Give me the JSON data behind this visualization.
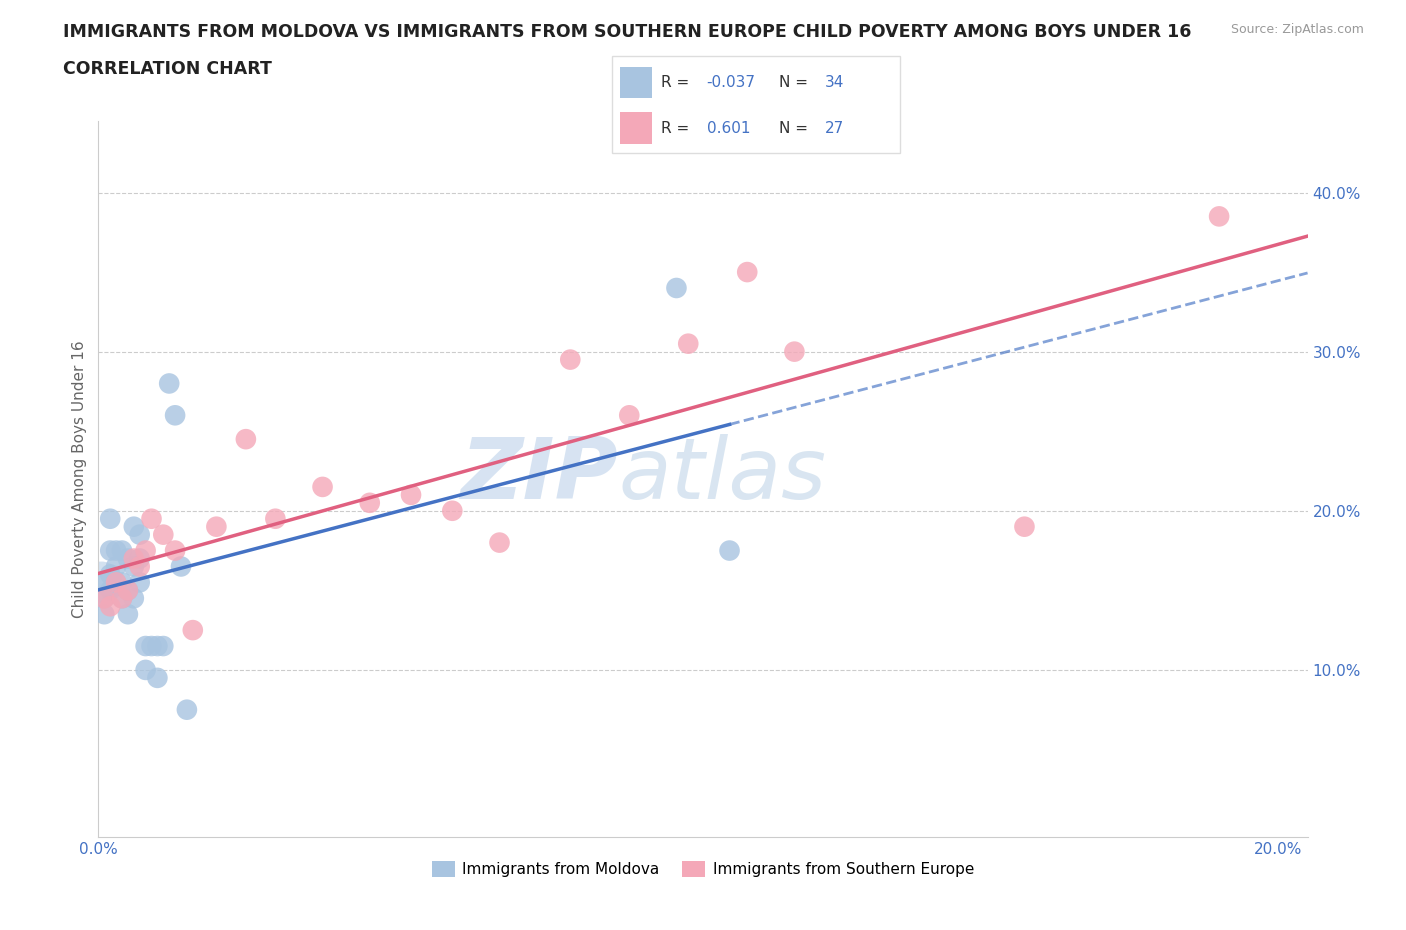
{
  "title_line1": "IMMIGRANTS FROM MOLDOVA VS IMMIGRANTS FROM SOUTHERN EUROPE CHILD POVERTY AMONG BOYS UNDER 16",
  "title_line2": "CORRELATION CHART",
  "source_text": "Source: ZipAtlas.com",
  "ylabel": "Child Poverty Among Boys Under 16",
  "R1": -0.037,
  "N1": 34,
  "R2": 0.601,
  "N2": 27,
  "color1": "#a8c4e0",
  "color2": "#f4a8b8",
  "trendline1_color": "#4472c4",
  "trendline2_color": "#e06080",
  "watermark_zip": "ZIP",
  "watermark_atlas": "atlas",
  "legend_label1": "Immigrants from Moldova",
  "legend_label2": "Immigrants from Southern Europe",
  "xlim": [
    0.0,
    0.205
  ],
  "ylim": [
    -0.005,
    0.445
  ],
  "xtick_vals": [
    0.0,
    0.05,
    0.1,
    0.15,
    0.2
  ],
  "xtick_labels": [
    "0.0%",
    "",
    "",
    "",
    "20.0%"
  ],
  "ytick_vals": [
    0.1,
    0.2,
    0.3,
    0.4
  ],
  "ytick_labels": [
    "10.0%",
    "20.0%",
    "30.0%",
    "40.0%"
  ],
  "moldova_x": [
    0.001,
    0.001,
    0.001,
    0.002,
    0.002,
    0.002,
    0.002,
    0.003,
    0.003,
    0.003,
    0.004,
    0.004,
    0.004,
    0.005,
    0.005,
    0.005,
    0.006,
    0.006,
    0.006,
    0.007,
    0.007,
    0.007,
    0.008,
    0.008,
    0.009,
    0.01,
    0.01,
    0.011,
    0.012,
    0.013,
    0.014,
    0.015,
    0.098,
    0.107
  ],
  "moldova_y": [
    0.135,
    0.145,
    0.155,
    0.15,
    0.16,
    0.175,
    0.195,
    0.155,
    0.165,
    0.175,
    0.145,
    0.155,
    0.175,
    0.135,
    0.15,
    0.17,
    0.145,
    0.165,
    0.19,
    0.155,
    0.17,
    0.185,
    0.1,
    0.115,
    0.115,
    0.095,
    0.115,
    0.115,
    0.28,
    0.26,
    0.165,
    0.075,
    0.34,
    0.175
  ],
  "s_europe_x": [
    0.001,
    0.002,
    0.003,
    0.004,
    0.005,
    0.006,
    0.007,
    0.008,
    0.009,
    0.011,
    0.013,
    0.016,
    0.02,
    0.025,
    0.03,
    0.038,
    0.046,
    0.053,
    0.06,
    0.068,
    0.08,
    0.09,
    0.1,
    0.11,
    0.118,
    0.157,
    0.19
  ],
  "s_europe_y": [
    0.145,
    0.14,
    0.155,
    0.145,
    0.15,
    0.17,
    0.165,
    0.175,
    0.195,
    0.185,
    0.175,
    0.125,
    0.19,
    0.245,
    0.195,
    0.215,
    0.205,
    0.21,
    0.2,
    0.18,
    0.295,
    0.26,
    0.305,
    0.35,
    0.3,
    0.19,
    0.385
  ]
}
